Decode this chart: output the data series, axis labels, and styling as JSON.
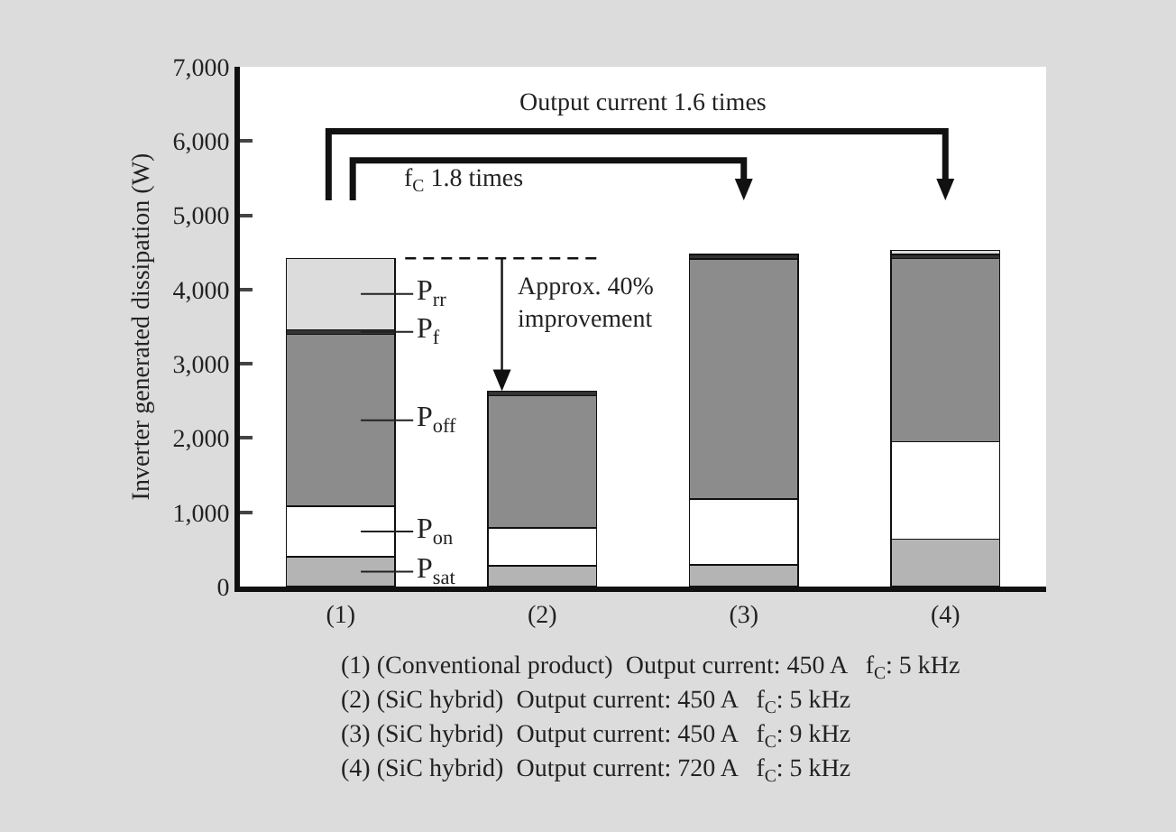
{
  "chart_data": {
    "type": "bar",
    "stacked": true,
    "ylabel": "Inverter generated dissipation (W)",
    "categories": [
      "(1)",
      "(2)",
      "(3)",
      "(4)"
    ],
    "series": [
      {
        "name": "P$_{sat}$",
        "color": "#b4b4b4",
        "values": [
          400,
          280,
          290,
          640
        ]
      },
      {
        "name": "P$_{on}$",
        "color": "#ffffff",
        "values": [
          680,
          510,
          890,
          1310
        ]
      },
      {
        "name": "P$_{off}$",
        "color": "#8c8c8c",
        "values": [
          2320,
          1780,
          3230,
          2470
        ]
      },
      {
        "name": "P$_{f}$",
        "color": "#333333",
        "values": [
          60,
          60,
          60,
          50
        ]
      },
      {
        "name": "P$_{rr}$",
        "color": "#dcdcdc",
        "values": [
          960,
          null,
          null,
          60
        ]
      }
    ],
    "ylim": [
      0,
      7000
    ],
    "yticks": [
      0,
      {
        "value": 1000,
        "label": "1,000"
      },
      {
        "value": 2000,
        "label": "2,000"
      },
      {
        "value": 3000,
        "label": "3,000"
      },
      {
        "value": 4000,
        "label": "4,000"
      },
      {
        "value": 5000,
        "label": "5,000"
      },
      {
        "value": 6000,
        "label": "6,000"
      },
      {
        "value": 7000,
        "label": "7,000"
      }
    ],
    "grid": false,
    "legend": false,
    "annotations": [
      "Output current 1.6 times",
      "f$_{C}$ 1.8 times",
      "Approx. 40%\nimprovement",
      "(1) (Conventional product)  Output current: 450 A   f$_{C}$: 5 kHz",
      "(2) (SiC hybrid)  Output current: 450 A   f$_{C}$: 5 kHz",
      "(3) (SiC hybrid)  Output current: 450 A   f$_{C}$: 9 kHz",
      "(4) (SiC hybrid)  Output current: 720 A   f$_{C}$: 5 kHz"
    ]
  }
}
